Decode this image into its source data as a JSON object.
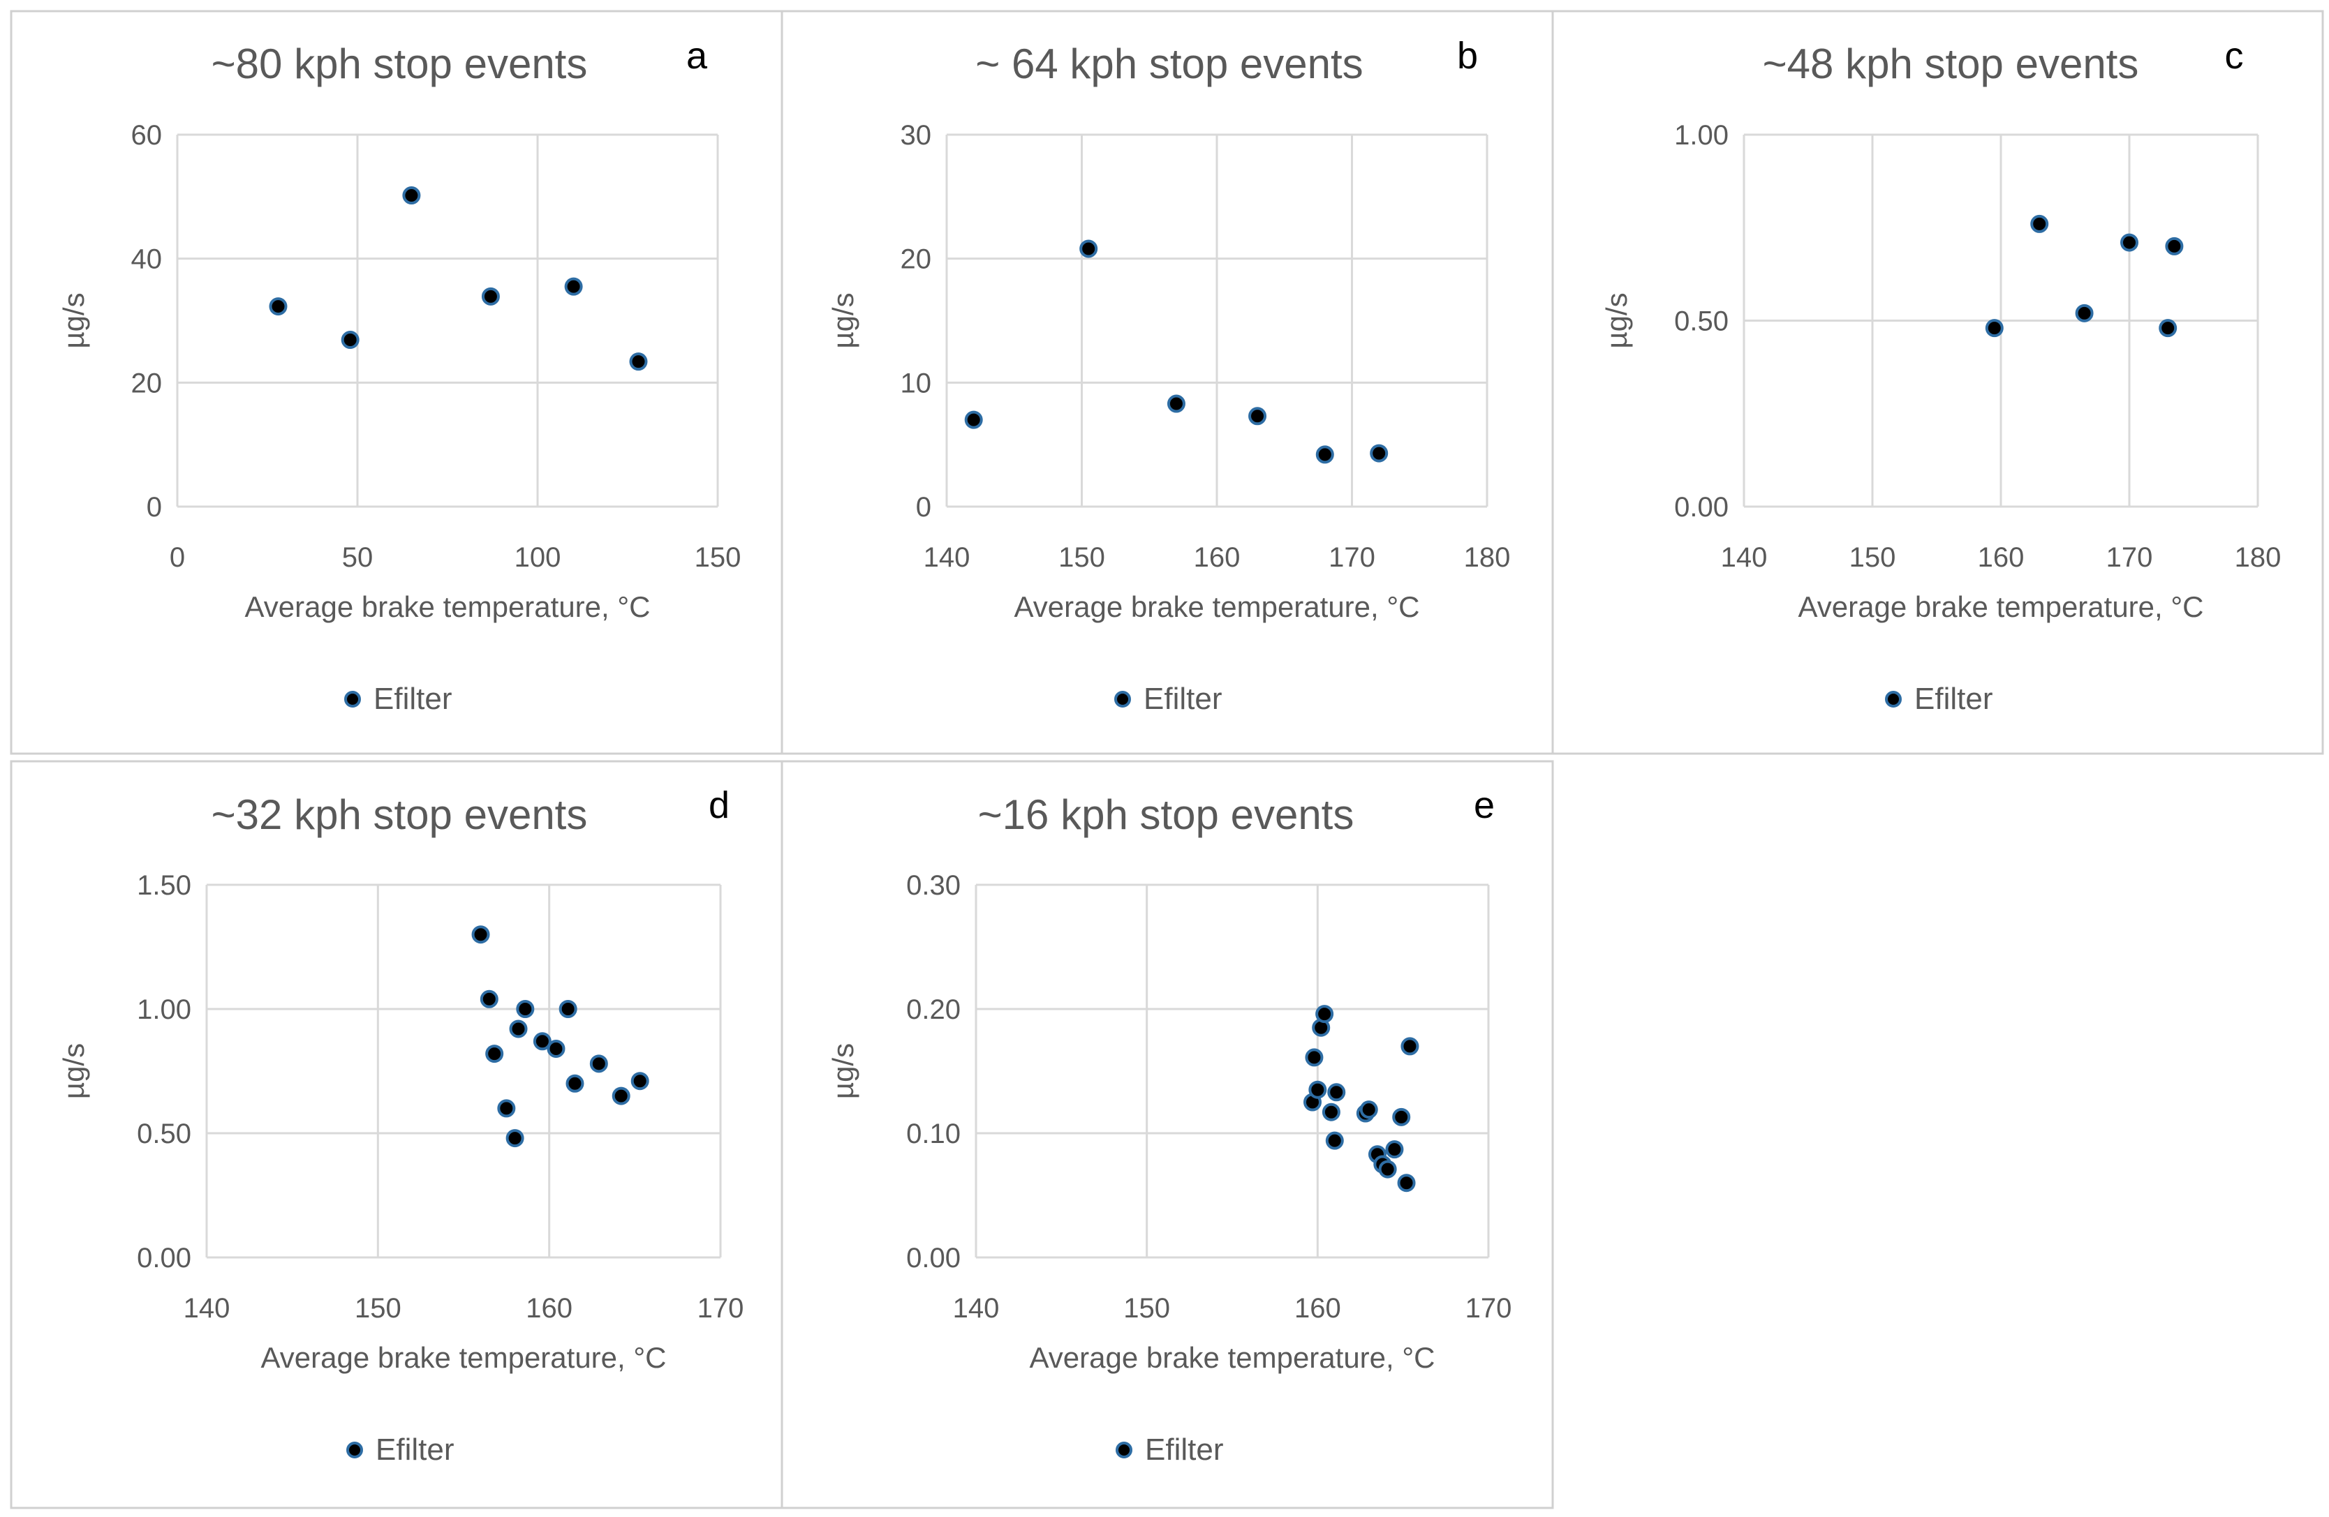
{
  "figure": {
    "background": "#ffffff",
    "point_fill": "#000000",
    "point_edge": "#2e6da4"
  },
  "chart_data": [
    {
      "type": "scatter",
      "panel_label": "a",
      "title": "~80 kph stop events",
      "xlabel": "Average brake temperature, °C",
      "ylabel": "µg/s",
      "xlim": [
        0,
        150
      ],
      "ylim": [
        0,
        60
      ],
      "xticks": [
        0,
        50,
        100,
        150
      ],
      "xtick_labels": [
        "0",
        "50",
        "100",
        "150"
      ],
      "yticks": [
        0,
        20,
        40,
        60
      ],
      "ytick_labels": [
        "0",
        "20",
        "40",
        "60"
      ],
      "legend": [
        "Efilter"
      ],
      "series": [
        {
          "name": "Efilter",
          "x": [
            28,
            48,
            65,
            87,
            110,
            128
          ],
          "y": [
            32.3,
            26.9,
            50.2,
            33.9,
            35.5,
            23.4
          ]
        }
      ]
    },
    {
      "type": "scatter",
      "panel_label": "b",
      "title": "~ 64 kph stop events",
      "xlabel": "Average brake temperature, °C",
      "ylabel": "µg/s",
      "xlim": [
        140,
        180
      ],
      "ylim": [
        0,
        30
      ],
      "xticks": [
        140,
        150,
        160,
        170,
        180
      ],
      "xtick_labels": [
        "140",
        "150",
        "160",
        "170",
        "180"
      ],
      "yticks": [
        0,
        10,
        20,
        30
      ],
      "ytick_labels": [
        "0",
        "10",
        "20",
        "30"
      ],
      "legend": [
        "Efilter"
      ],
      "series": [
        {
          "name": "Efilter",
          "x": [
            142,
            150.5,
            157,
            163,
            168,
            172
          ],
          "y": [
            7.0,
            20.8,
            8.3,
            7.3,
            4.2,
            4.3
          ]
        }
      ]
    },
    {
      "type": "scatter",
      "panel_label": "c",
      "title": "~48 kph stop events",
      "xlabel": "Average brake temperature, °C",
      "ylabel": "µg/s",
      "xlim": [
        140,
        180
      ],
      "ylim": [
        0,
        1
      ],
      "xticks": [
        140,
        150,
        160,
        170,
        180
      ],
      "xtick_labels": [
        "140",
        "150",
        "160",
        "170",
        "180"
      ],
      "yticks": [
        0,
        0.5,
        1
      ],
      "ytick_labels": [
        "0.00",
        "0.50",
        "1.00"
      ],
      "legend": [
        "Efilter"
      ],
      "series": [
        {
          "name": "Efilter",
          "x": [
            159.5,
            163,
            166.5,
            170,
            173,
            173.5
          ],
          "y": [
            0.48,
            0.76,
            0.52,
            0.71,
            0.48,
            0.7
          ]
        }
      ]
    },
    {
      "type": "scatter",
      "panel_label": "d",
      "title": "~32 kph stop events",
      "xlabel": "Average brake temperature, °C",
      "ylabel": "µg/s",
      "xlim": [
        140,
        170
      ],
      "ylim": [
        0,
        1.5
      ],
      "xticks": [
        140,
        150,
        160,
        170
      ],
      "xtick_labels": [
        "140",
        "150",
        "160",
        "170"
      ],
      "yticks": [
        0,
        0.5,
        1,
        1.5
      ],
      "ytick_labels": [
        "0.00",
        "0.50",
        "1.00",
        "1.50"
      ],
      "legend": [
        "Efilter"
      ],
      "series": [
        {
          "name": "Efilter",
          "x": [
            156,
            156.5,
            156.8,
            157.5,
            158,
            158.2,
            158.6,
            159.6,
            160.4,
            161.1,
            161.5,
            162.9,
            164.2,
            165.3
          ],
          "y": [
            1.3,
            1.04,
            0.82,
            0.6,
            0.48,
            0.92,
            1.0,
            0.87,
            0.84,
            1.0,
            0.7,
            0.78,
            0.65,
            0.71
          ]
        }
      ]
    },
    {
      "type": "scatter",
      "panel_label": "e",
      "title": "~16 kph stop events",
      "xlabel": "Average brake temperature, °C",
      "ylabel": "µg/s",
      "xlim": [
        140,
        170
      ],
      "ylim": [
        0,
        0.3
      ],
      "xticks": [
        140,
        150,
        160,
        170
      ],
      "xtick_labels": [
        "140",
        "150",
        "160",
        "170"
      ],
      "yticks": [
        0,
        0.1,
        0.2,
        0.3
      ],
      "ytick_labels": [
        "0.00",
        "0.10",
        "0.20",
        "0.30"
      ],
      "legend": [
        "Efilter"
      ],
      "series": [
        {
          "name": "Efilter",
          "x": [
            159.7,
            159.8,
            160,
            160.2,
            160.4,
            160.8,
            161.1,
            161,
            162.8,
            163,
            163.5,
            163.8,
            164.1,
            164.5,
            164.9,
            165.2,
            165.4
          ],
          "y": [
            0.125,
            0.161,
            0.135,
            0.185,
            0.196,
            0.117,
            0.133,
            0.094,
            0.116,
            0.119,
            0.083,
            0.075,
            0.071,
            0.087,
            0.113,
            0.06,
            0.17
          ]
        }
      ]
    }
  ]
}
